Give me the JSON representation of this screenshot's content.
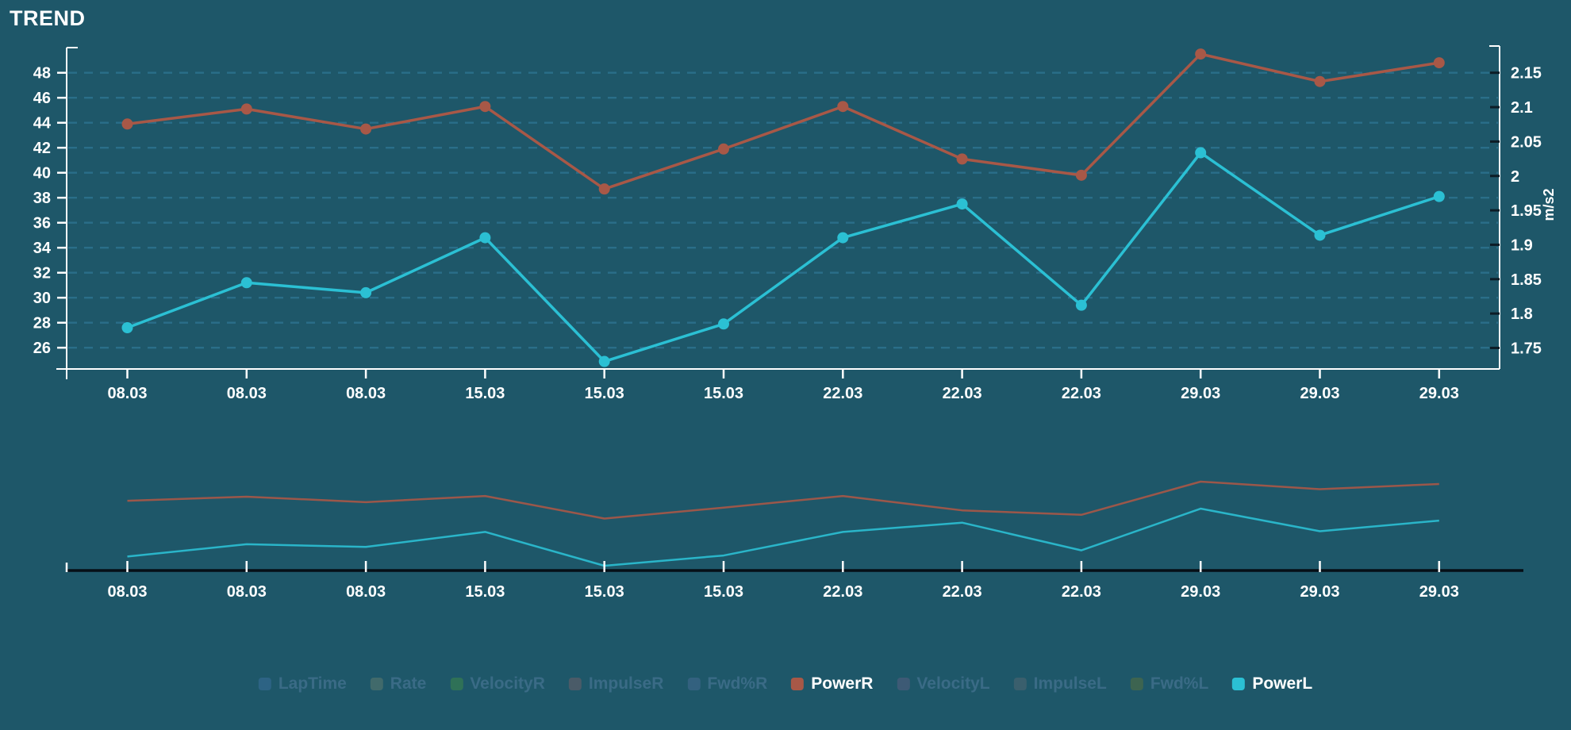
{
  "title": "TREND",
  "colors": {
    "background": "#1e5769",
    "grid": "#2e7492",
    "axis": "#ffffff",
    "right_tick": "#0c1c26",
    "mini_axis": "#060f16",
    "label_text": "#ffffff",
    "dim_text": "#3a6b86",
    "power_r": "#a85847",
    "power_l": "#2bc0d4"
  },
  "chart_data": {
    "type": "line",
    "title": "TREND",
    "categories": [
      "08.03",
      "08.03",
      "08.03",
      "15.03",
      "15.03",
      "15.03",
      "22.03",
      "22.03",
      "22.03",
      "29.03",
      "29.03",
      "29.03"
    ],
    "series": [
      {
        "name": "PowerR",
        "color": "#a85847",
        "axis": "left",
        "values": [
          43.9,
          45.1,
          43.5,
          45.3,
          38.7,
          41.9,
          45.3,
          41.1,
          39.8,
          49.5,
          47.3,
          48.8
        ]
      },
      {
        "name": "PowerL",
        "color": "#2bc0d4",
        "axis": "left",
        "values": [
          27.6,
          31.2,
          30.4,
          34.8,
          24.9,
          27.9,
          34.8,
          37.5,
          29.4,
          41.6,
          35.0,
          38.1
        ]
      }
    ],
    "y_left": {
      "tick_labels": [
        "48",
        "46",
        "44",
        "42",
        "40",
        "38",
        "36",
        "34",
        "32",
        "30",
        "28",
        "26"
      ],
      "max": 48,
      "min": 26,
      "step": 2
    },
    "y_right": {
      "tick_labels": [
        "2.15",
        "2.1",
        "2.05",
        "2",
        "1.95",
        "1.9",
        "1.85",
        "1.8",
        "1.75"
      ],
      "title": "m/s2"
    },
    "grid": "dashed-horizontal",
    "legend_position": "bottom-center",
    "navigator": true
  },
  "legend": {
    "items": [
      {
        "label": "LapTime",
        "color": "#2d6384",
        "active": false
      },
      {
        "label": "Rate",
        "color": "#416a6b",
        "active": false
      },
      {
        "label": "VelocityR",
        "color": "#2f7157",
        "active": false
      },
      {
        "label": "ImpulseR",
        "color": "#4a5b68",
        "active": false
      },
      {
        "label": "Fwd%R",
        "color": "#33617f",
        "active": false
      },
      {
        "label": "PowerR",
        "color": "#a85847",
        "active": true
      },
      {
        "label": "VelocityL",
        "color": "#3d5a75",
        "active": false
      },
      {
        "label": "ImpulseL",
        "color": "#3a5f6d",
        "active": false
      },
      {
        "label": "Fwd%L",
        "color": "#3d6450",
        "active": false
      },
      {
        "label": "PowerL",
        "color": "#2bc0d4",
        "active": true
      }
    ]
  }
}
